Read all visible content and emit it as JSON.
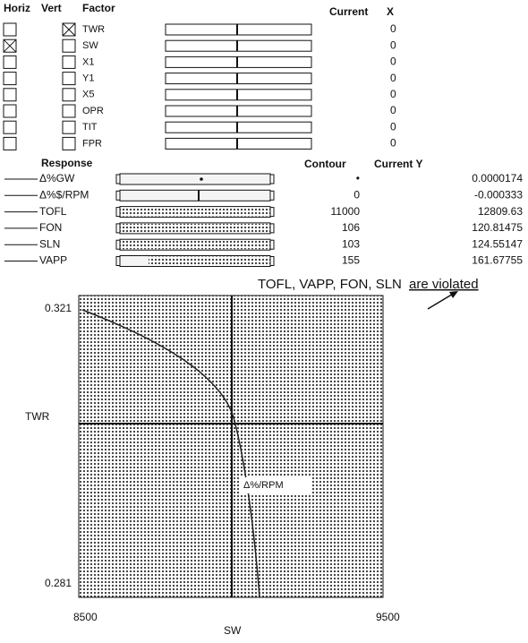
{
  "header": {
    "horiz": "Horiz",
    "vert": "Vert",
    "factor": "Factor",
    "current": "Current",
    "x": "X"
  },
  "factors": [
    {
      "name": "TWR",
      "horiz": false,
      "vert": true,
      "current": "0"
    },
    {
      "name": "SW",
      "horiz": true,
      "vert": false,
      "current": "0"
    },
    {
      "name": "X1",
      "horiz": false,
      "vert": false,
      "current": "0"
    },
    {
      "name": "Y1",
      "horiz": false,
      "vert": false,
      "current": "0"
    },
    {
      "name": "X5",
      "horiz": false,
      "vert": false,
      "current": "0"
    },
    {
      "name": "OPR",
      "horiz": false,
      "vert": false,
      "current": "0"
    },
    {
      "name": "TIT",
      "horiz": false,
      "vert": false,
      "current": "0"
    },
    {
      "name": "FPR",
      "horiz": false,
      "vert": false,
      "current": "0"
    }
  ],
  "response_header": {
    "response": "Response",
    "contour": "Contour",
    "current_y": "Current Y"
  },
  "responses": [
    {
      "name": "Δ%GW",
      "contour": "•",
      "current": "0.0000174"
    },
    {
      "name": "Δ%$/RPM",
      "contour": "0",
      "current": "-0.000333"
    },
    {
      "name": "TOFL",
      "contour": "11000",
      "current": "12809.63"
    },
    {
      "name": "FON",
      "contour": "106",
      "current": "120.81475"
    },
    {
      "name": "SLN",
      "contour": "103",
      "current": "124.55147"
    },
    {
      "name": "VAPP",
      "contour": "155",
      "current": "161.67755"
    }
  ],
  "annotation": {
    "text": "TOFL, VAPP, FON, SLN",
    "underlined": "are violated"
  },
  "plot": {
    "y_label": "TWR",
    "x_label": "SW",
    "y_top": "0.321",
    "y_bottom": "0.281",
    "x_left": "8500",
    "x_right": "9500",
    "contour_label": "Δ%/RPM"
  }
}
